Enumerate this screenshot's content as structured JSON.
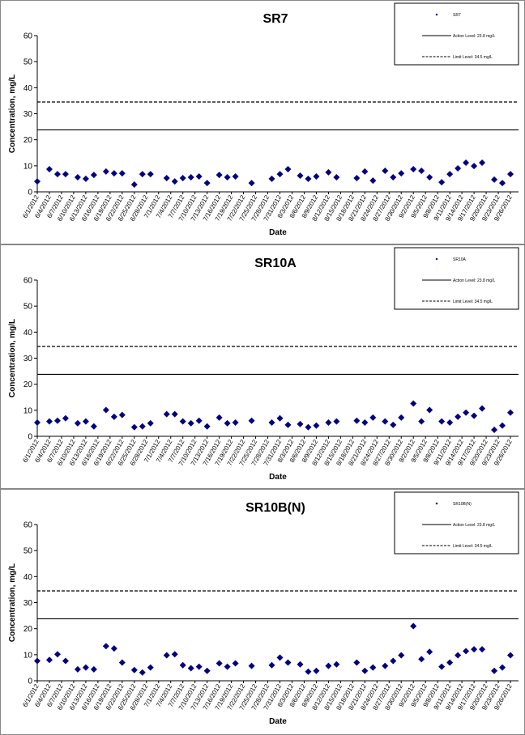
{
  "chart_data": [
    {
      "type": "scatter",
      "title": "SR7",
      "x_label": "Date",
      "y_label": "Concentration, mg/L",
      "x": [
        "6/1/2012",
        "6/4/2012",
        "6/6/2012",
        "6/8/2012",
        "6/11/2012",
        "6/13/2012",
        "6/15/2012",
        "6/18/2012",
        "6/20/2012",
        "6/22/2012",
        "6/25/2012",
        "6/27/2012",
        "6/29/2012",
        "7/3/2012",
        "7/5/2012",
        "7/7/2012",
        "7/9/2012",
        "7/11/2012",
        "7/13/2012",
        "7/16/2012",
        "7/18/2012",
        "7/20/2012",
        "7/24/2012",
        "7/29/2012",
        "7/31/2012",
        "8/2/2012",
        "8/5/2012",
        "8/7/2012",
        "8/9/2012",
        "8/12/2012",
        "8/14/2012",
        "8/19/2012",
        "8/21/2012",
        "8/23/2012",
        "8/26/2012",
        "8/28/2012",
        "8/30/2012",
        "9/2/2012",
        "9/4/2012",
        "9/6/2012",
        "9/9/2012",
        "9/11/2012",
        "9/13/2012",
        "9/15/2012",
        "9/17/2012",
        "9/19/2012",
        "9/22/2012",
        "9/24/2012",
        "9/26/2012"
      ],
      "series": [
        {
          "name": "SR7",
          "color": "#000080",
          "values": [
            4.0,
            8.7,
            6.8,
            6.8,
            5.6,
            5.0,
            6.5,
            7.8,
            7.1,
            7.1,
            2.8,
            6.8,
            6.8,
            5.3,
            4.0,
            5.3,
            5.6,
            5.9,
            3.4,
            6.5,
            5.6,
            5.9,
            3.4,
            5.0,
            6.8,
            8.7,
            6.2,
            5.0,
            5.9,
            7.5,
            5.6,
            5.3,
            7.8,
            4.3,
            8.1,
            5.6,
            7.1,
            8.7,
            8.1,
            5.6,
            3.7,
            6.8,
            9.0,
            11.2,
            9.9,
            11.2,
            4.7,
            3.4,
            6.8
          ]
        }
      ],
      "reference_lines": [
        {
          "name": "Action Level: 23.8 mg/L",
          "value": 23.8,
          "style": "solid"
        },
        {
          "name": "Limit Level: 34.5 mg/L",
          "value": 34.5,
          "style": "dashed"
        }
      ],
      "xlim": [
        "6/1/2012",
        "9/28/2012"
      ],
      "xticks": [
        "6/1/2012",
        "6/4/2012",
        "6/7/2012",
        "6/10/2012",
        "6/13/2012",
        "6/16/2012",
        "6/19/2012",
        "6/22/2012",
        "6/25/2012",
        "6/28/2012",
        "7/1/2012",
        "7/4/2012",
        "7/7/2012",
        "7/10/2012",
        "7/13/2012",
        "7/16/2012",
        "7/19/2012",
        "7/22/2012",
        "7/25/2012",
        "7/28/2012",
        "7/31/2012",
        "8/3/2012",
        "8/6/2012",
        "8/9/2012",
        "8/12/2012",
        "8/15/2012",
        "8/18/2012",
        "8/21/2012",
        "8/24/2012",
        "8/27/2012",
        "8/30/2012",
        "9/2/2012",
        "9/5/2012",
        "9/8/2012",
        "9/11/2012",
        "9/14/2012",
        "9/17/2012",
        "9/20/2012",
        "9/23/2012",
        "9/26/2012"
      ],
      "ylim": [
        0,
        60
      ],
      "yticks": [
        0,
        10,
        20,
        30,
        40,
        50,
        60
      ],
      "legend": "upper right"
    },
    {
      "type": "scatter",
      "title": "SR10A",
      "x_label": "Date",
      "y_label": "Concentration, mg/L",
      "x": [
        "6/1/2012",
        "6/4/2012",
        "6/6/2012",
        "6/8/2012",
        "6/11/2012",
        "6/13/2012",
        "6/15/2012",
        "6/18/2012",
        "6/20/2012",
        "6/22/2012",
        "6/25/2012",
        "6/27/2012",
        "6/29/2012",
        "7/3/2012",
        "7/5/2012",
        "7/7/2012",
        "7/9/2012",
        "7/11/2012",
        "7/13/2012",
        "7/16/2012",
        "7/18/2012",
        "7/20/2012",
        "7/24/2012",
        "7/29/2012",
        "7/31/2012",
        "8/2/2012",
        "8/5/2012",
        "8/7/2012",
        "8/9/2012",
        "8/12/2012",
        "8/14/2012",
        "8/19/2012",
        "8/21/2012",
        "8/23/2012",
        "8/26/2012",
        "8/28/2012",
        "8/30/2012",
        "9/2/2012",
        "9/4/2012",
        "9/6/2012",
        "9/9/2012",
        "9/11/2012",
        "9/13/2012",
        "9/15/2012",
        "9/17/2012",
        "9/19/2012",
        "9/22/2012",
        "9/24/2012",
        "9/26/2012"
      ],
      "series": [
        {
          "name": "SR10A",
          "color": "#000080",
          "values": [
            5.3,
            5.7,
            6.0,
            6.9,
            5.0,
            5.7,
            3.8,
            10.1,
            7.5,
            8.2,
            3.5,
            3.8,
            5.0,
            8.5,
            8.5,
            5.7,
            5.0,
            6.0,
            3.8,
            7.2,
            5.0,
            5.3,
            6.0,
            5.3,
            6.9,
            4.4,
            4.7,
            3.5,
            4.1,
            5.3,
            5.7,
            6.0,
            5.3,
            7.2,
            5.7,
            4.4,
            7.2,
            12.6,
            5.7,
            10.1,
            5.7,
            5.3,
            7.5,
            9.1,
            7.9,
            10.7,
            2.5,
            4.1,
            9.1
          ]
        }
      ],
      "reference_lines": [
        {
          "name": "Action Level: 23.8 mg/L",
          "value": 23.8,
          "style": "solid"
        },
        {
          "name": "Limit Level: 34.5 mg/L",
          "value": 34.5,
          "style": "dashed"
        }
      ],
      "xlim": [
        "6/1/2012",
        "9/28/2012"
      ],
      "xticks": [
        "6/1/2012",
        "6/4/2012",
        "6/7/2012",
        "6/10/2012",
        "6/13/2012",
        "6/16/2012",
        "6/19/2012",
        "6/22/2012",
        "6/25/2012",
        "6/28/2012",
        "7/1/2012",
        "7/4/2012",
        "7/7/2012",
        "7/10/2012",
        "7/13/2012",
        "7/16/2012",
        "7/19/2012",
        "7/22/2012",
        "7/25/2012",
        "7/28/2012",
        "7/31/2012",
        "8/3/2012",
        "8/6/2012",
        "8/9/2012",
        "8/12/2012",
        "8/15/2012",
        "8/18/2012",
        "8/21/2012",
        "8/24/2012",
        "8/27/2012",
        "8/30/2012",
        "9/2/2012",
        "9/5/2012",
        "9/8/2012",
        "9/11/2012",
        "9/14/2012",
        "9/17/2012",
        "9/20/2012",
        "9/23/2012",
        "9/26/2012"
      ],
      "ylim": [
        0,
        60
      ],
      "yticks": [
        0,
        10,
        20,
        30,
        40,
        50,
        60
      ],
      "legend": "upper right"
    },
    {
      "type": "scatter",
      "title": "SR10B(N)",
      "x_label": "Date",
      "y_label": "Concentration, mg/L",
      "x": [
        "6/1/2012",
        "6/4/2012",
        "6/6/2012",
        "6/8/2012",
        "6/11/2012",
        "6/13/2012",
        "6/15/2012",
        "6/18/2012",
        "6/20/2012",
        "6/22/2012",
        "6/25/2012",
        "6/27/2012",
        "6/29/2012",
        "7/3/2012",
        "7/5/2012",
        "7/7/2012",
        "7/9/2012",
        "7/11/2012",
        "7/13/2012",
        "7/16/2012",
        "7/18/2012",
        "7/20/2012",
        "7/24/2012",
        "7/29/2012",
        "7/31/2012",
        "8/2/2012",
        "8/5/2012",
        "8/7/2012",
        "8/9/2012",
        "8/12/2012",
        "8/14/2012",
        "8/19/2012",
        "8/21/2012",
        "8/23/2012",
        "8/26/2012",
        "8/28/2012",
        "8/30/2012",
        "9/2/2012",
        "9/4/2012",
        "9/6/2012",
        "9/9/2012",
        "9/11/2012",
        "9/13/2012",
        "9/15/2012",
        "9/17/2012",
        "9/19/2012",
        "9/22/2012",
        "9/24/2012",
        "9/26/2012"
      ],
      "series": [
        {
          "name": "SR10B(N)",
          "color": "#000080",
          "values": [
            7.6,
            8.0,
            10.2,
            7.6,
            4.4,
            5.1,
            4.4,
            13.3,
            12.4,
            7.0,
            4.1,
            3.2,
            5.1,
            9.8,
            10.2,
            6.0,
            4.8,
            5.4,
            3.8,
            6.7,
            5.4,
            6.7,
            5.7,
            6.0,
            8.9,
            7.0,
            6.3,
            3.5,
            3.8,
            5.7,
            6.3,
            7.0,
            3.8,
            5.1,
            5.7,
            7.6,
            9.8,
            21.0,
            8.3,
            11.1,
            5.4,
            7.0,
            9.8,
            11.4,
            12.1,
            12.1,
            3.8,
            5.1,
            9.8
          ]
        }
      ],
      "reference_lines": [
        {
          "name": "Action Level: 23.8 mg/L",
          "value": 23.8,
          "style": "solid"
        },
        {
          "name": "Limit Level: 34.5 mg/L",
          "value": 34.5,
          "style": "dashed"
        }
      ],
      "xlim": [
        "6/1/2012",
        "9/28/2012"
      ],
      "xticks": [
        "6/1/2012",
        "6/4/2012",
        "6/7/2012",
        "6/10/2012",
        "6/13/2012",
        "6/16/2012",
        "6/19/2012",
        "6/22/2012",
        "6/25/2012",
        "6/28/2012",
        "7/1/2012",
        "7/4/2012",
        "7/7/2012",
        "7/10/2012",
        "7/13/2012",
        "7/16/2012",
        "7/19/2012",
        "7/22/2012",
        "7/25/2012",
        "7/28/2012",
        "7/31/2012",
        "8/3/2012",
        "8/6/2012",
        "8/9/2012",
        "8/12/2012",
        "8/15/2012",
        "8/18/2012",
        "8/21/2012",
        "8/24/2012",
        "8/27/2012",
        "8/30/2012",
        "9/2/2012",
        "9/5/2012",
        "9/8/2012",
        "9/11/2012",
        "9/14/2012",
        "9/17/2012",
        "9/20/2012",
        "9/23/2012",
        "9/26/2012"
      ],
      "ylim": [
        0,
        60
      ],
      "yticks": [
        0,
        10,
        20,
        30,
        40,
        50,
        60
      ],
      "legend": "upper right"
    }
  ]
}
